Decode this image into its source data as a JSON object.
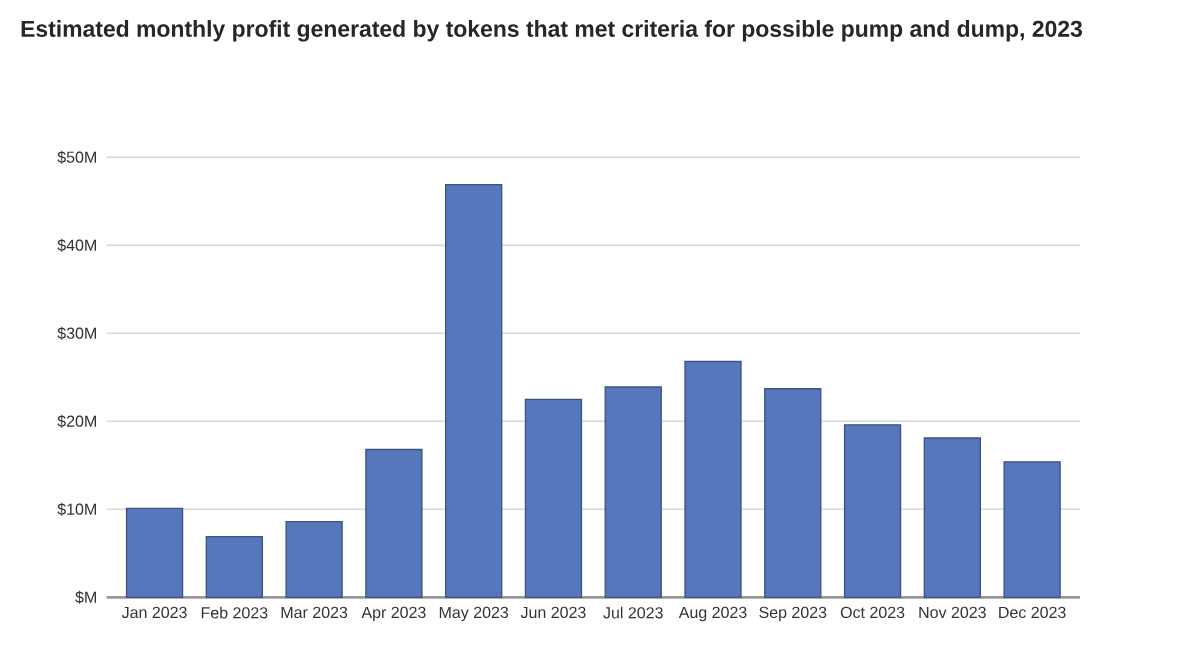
{
  "chart_data": {
    "type": "bar",
    "title": "Estimated monthly profit generated by tokens that met criteria for possible pump and dump, 2023",
    "categories": [
      "Jan 2023",
      "Feb 2023",
      "Mar 2023",
      "Apr 2023",
      "May 2023",
      "Jun 2023",
      "Jul 2023",
      "Aug 2023",
      "Sep 2023",
      "Oct 2023",
      "Nov 2023",
      "Dec 2023"
    ],
    "values": [
      10.1,
      6.9,
      8.6,
      16.8,
      46.9,
      22.5,
      23.9,
      26.8,
      23.7,
      19.6,
      18.1,
      15.4
    ],
    "color": "#5677bb",
    "ylim": [
      0,
      50
    ],
    "yticks": [
      {
        "value": 0,
        "label": "$M"
      },
      {
        "value": 10,
        "label": "$10M"
      },
      {
        "value": 20,
        "label": "$20M"
      },
      {
        "value": 30,
        "label": "$30M"
      },
      {
        "value": 40,
        "label": "$40M"
      },
      {
        "value": 50,
        "label": "$50M"
      }
    ],
    "grid": "y"
  }
}
